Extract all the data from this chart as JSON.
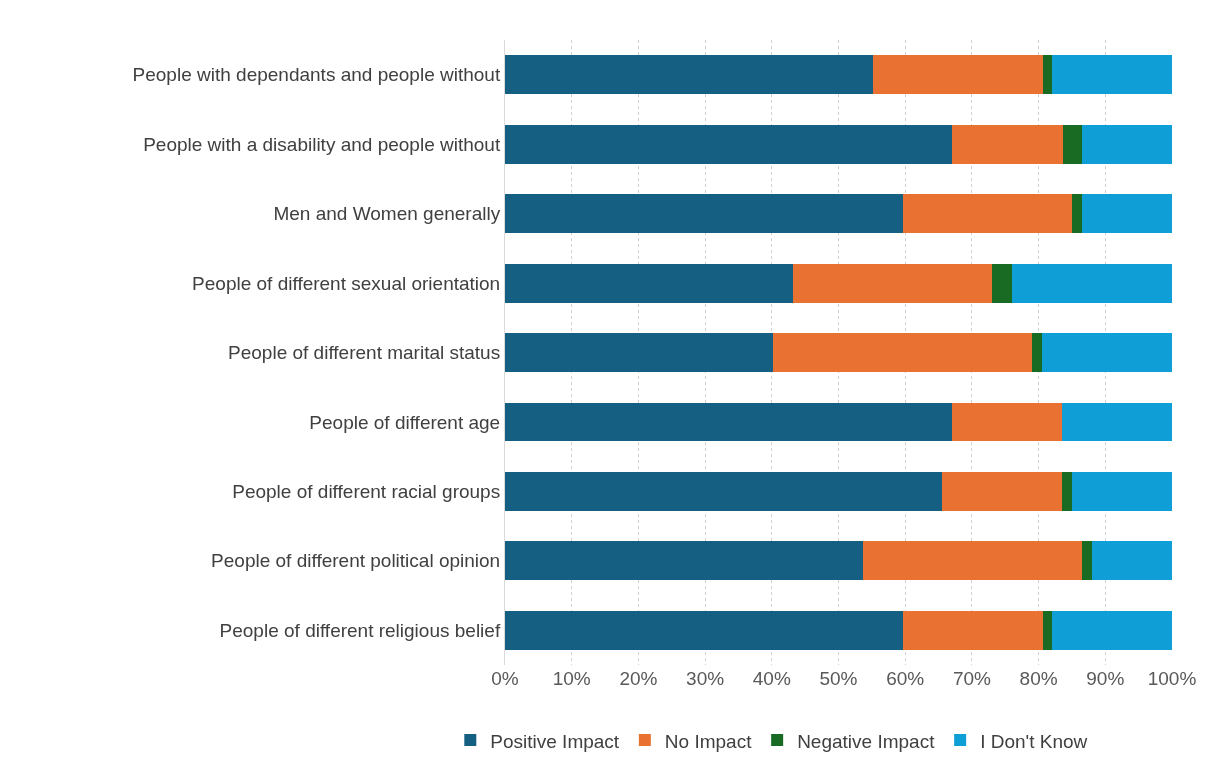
{
  "chart_data": {
    "type": "bar",
    "orientation": "horizontal",
    "stacked": true,
    "categories": [
      "People with dependants and people without",
      "People with a disability and people without",
      "Men and Women generally",
      "People of different sexual orientation",
      "People of different marital status",
      "People of different age",
      "People of different racial groups",
      "People of different political opinion",
      "People of different religious belief"
    ],
    "series": [
      {
        "name": "Positive Impact",
        "color": "#156082",
        "values": [
          55.2,
          67.0,
          59.7,
          43.2,
          40.2,
          67.0,
          65.5,
          53.7,
          59.7
        ]
      },
      {
        "name": "No Impact",
        "color": "#e97132",
        "values": [
          25.5,
          16.7,
          25.3,
          29.8,
          38.8,
          16.5,
          18.0,
          32.8,
          21.0
        ]
      },
      {
        "name": "Negative Impact",
        "color": "#196b24",
        "values": [
          1.3,
          2.8,
          1.5,
          3.0,
          1.5,
          0,
          1.5,
          1.5,
          1.3
        ]
      },
      {
        "name": "I Don't Know",
        "color": "#0f9ed5",
        "values": [
          18.0,
          13.5,
          13.5,
          24.0,
          19.5,
          16.5,
          15.0,
          12.0,
          18.0
        ]
      }
    ],
    "xlim": [
      0,
      100
    ],
    "xticks": [
      {
        "value": 0,
        "label": "0%"
      },
      {
        "value": 10,
        "label": "10%"
      },
      {
        "value": 20,
        "label": "20%"
      },
      {
        "value": 30,
        "label": "30%"
      },
      {
        "value": 40,
        "label": "40%"
      },
      {
        "value": 50,
        "label": "50%"
      },
      {
        "value": 60,
        "label": "60%"
      },
      {
        "value": 70,
        "label": "70%"
      },
      {
        "value": 80,
        "label": "80%"
      },
      {
        "value": 90,
        "label": "90%"
      },
      {
        "value": 100,
        "label": "100%"
      }
    ],
    "grid": "x",
    "legend": "bottom"
  }
}
